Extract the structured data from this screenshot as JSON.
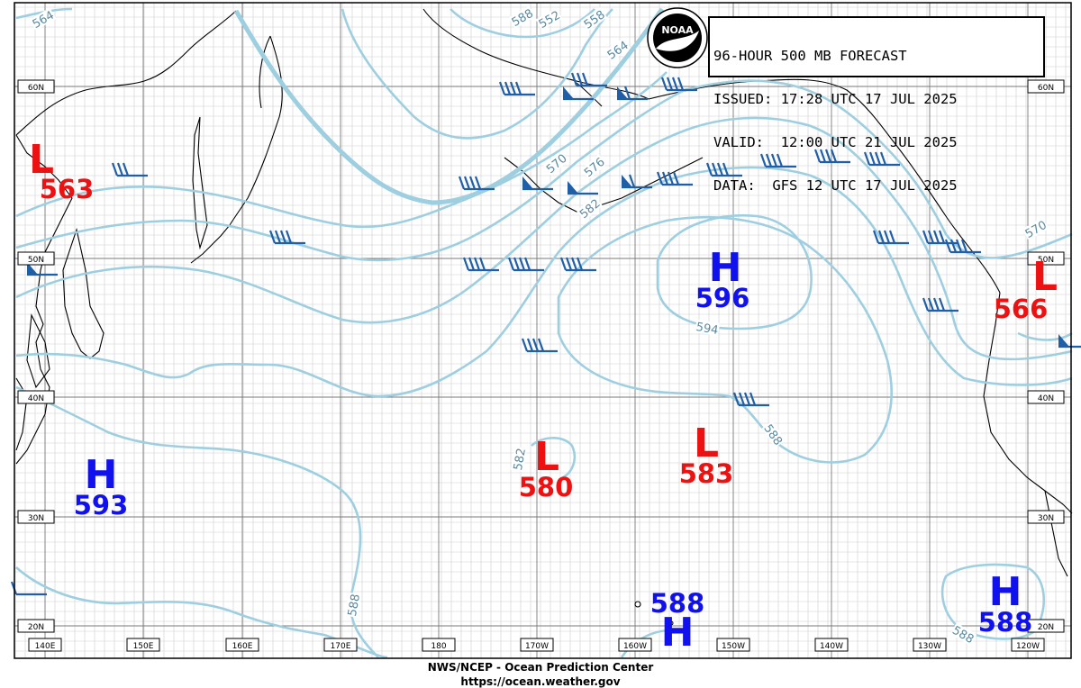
{
  "header": {
    "title": "96-HOUR 500 MB FORECAST",
    "issued": "ISSUED: 17:28 UTC 17 JUL 2025",
    "valid": "VALID:  12:00 UTC 21 JUL 2025",
    "data": "DATA:  GFS 12 UTC 17 JUL 2025"
  },
  "logo": {
    "text": "NOAA"
  },
  "footer": {
    "line1": "NWS/NCEP - Ocean Prediction Center",
    "line2": "https://ocean.weather.gov"
  },
  "lat_labels": [
    "60N",
    "50N",
    "40N",
    "30N",
    "20N"
  ],
  "lon_labels": [
    "140E",
    "150E",
    "160E",
    "170E",
    "180",
    "170W",
    "160W",
    "150W",
    "140W",
    "130W",
    "120W"
  ],
  "contour_labels": [
    "564",
    "552",
    "558",
    "564",
    "570",
    "576",
    "582",
    "588",
    "594",
    "582",
    "588",
    "588",
    "570",
    "588"
  ],
  "pressure_centers": [
    {
      "type": "L",
      "value": "563"
    },
    {
      "type": "H",
      "value": "596"
    },
    {
      "type": "L",
      "value": "566"
    },
    {
      "type": "L",
      "value": "580"
    },
    {
      "type": "L",
      "value": "583"
    },
    {
      "type": "H",
      "value": "593"
    },
    {
      "type": "H",
      "value": "588"
    },
    {
      "type": "H",
      "value": "588"
    }
  ],
  "colors": {
    "low": "#ee1111",
    "high": "#1111ee",
    "contour": "#9ecfe0",
    "contour_label": "#5a8aa0",
    "wind_barb": "#1f5fa8",
    "coast": "#000000",
    "grid_major": "#777777",
    "grid_minor": "#cccccc"
  }
}
